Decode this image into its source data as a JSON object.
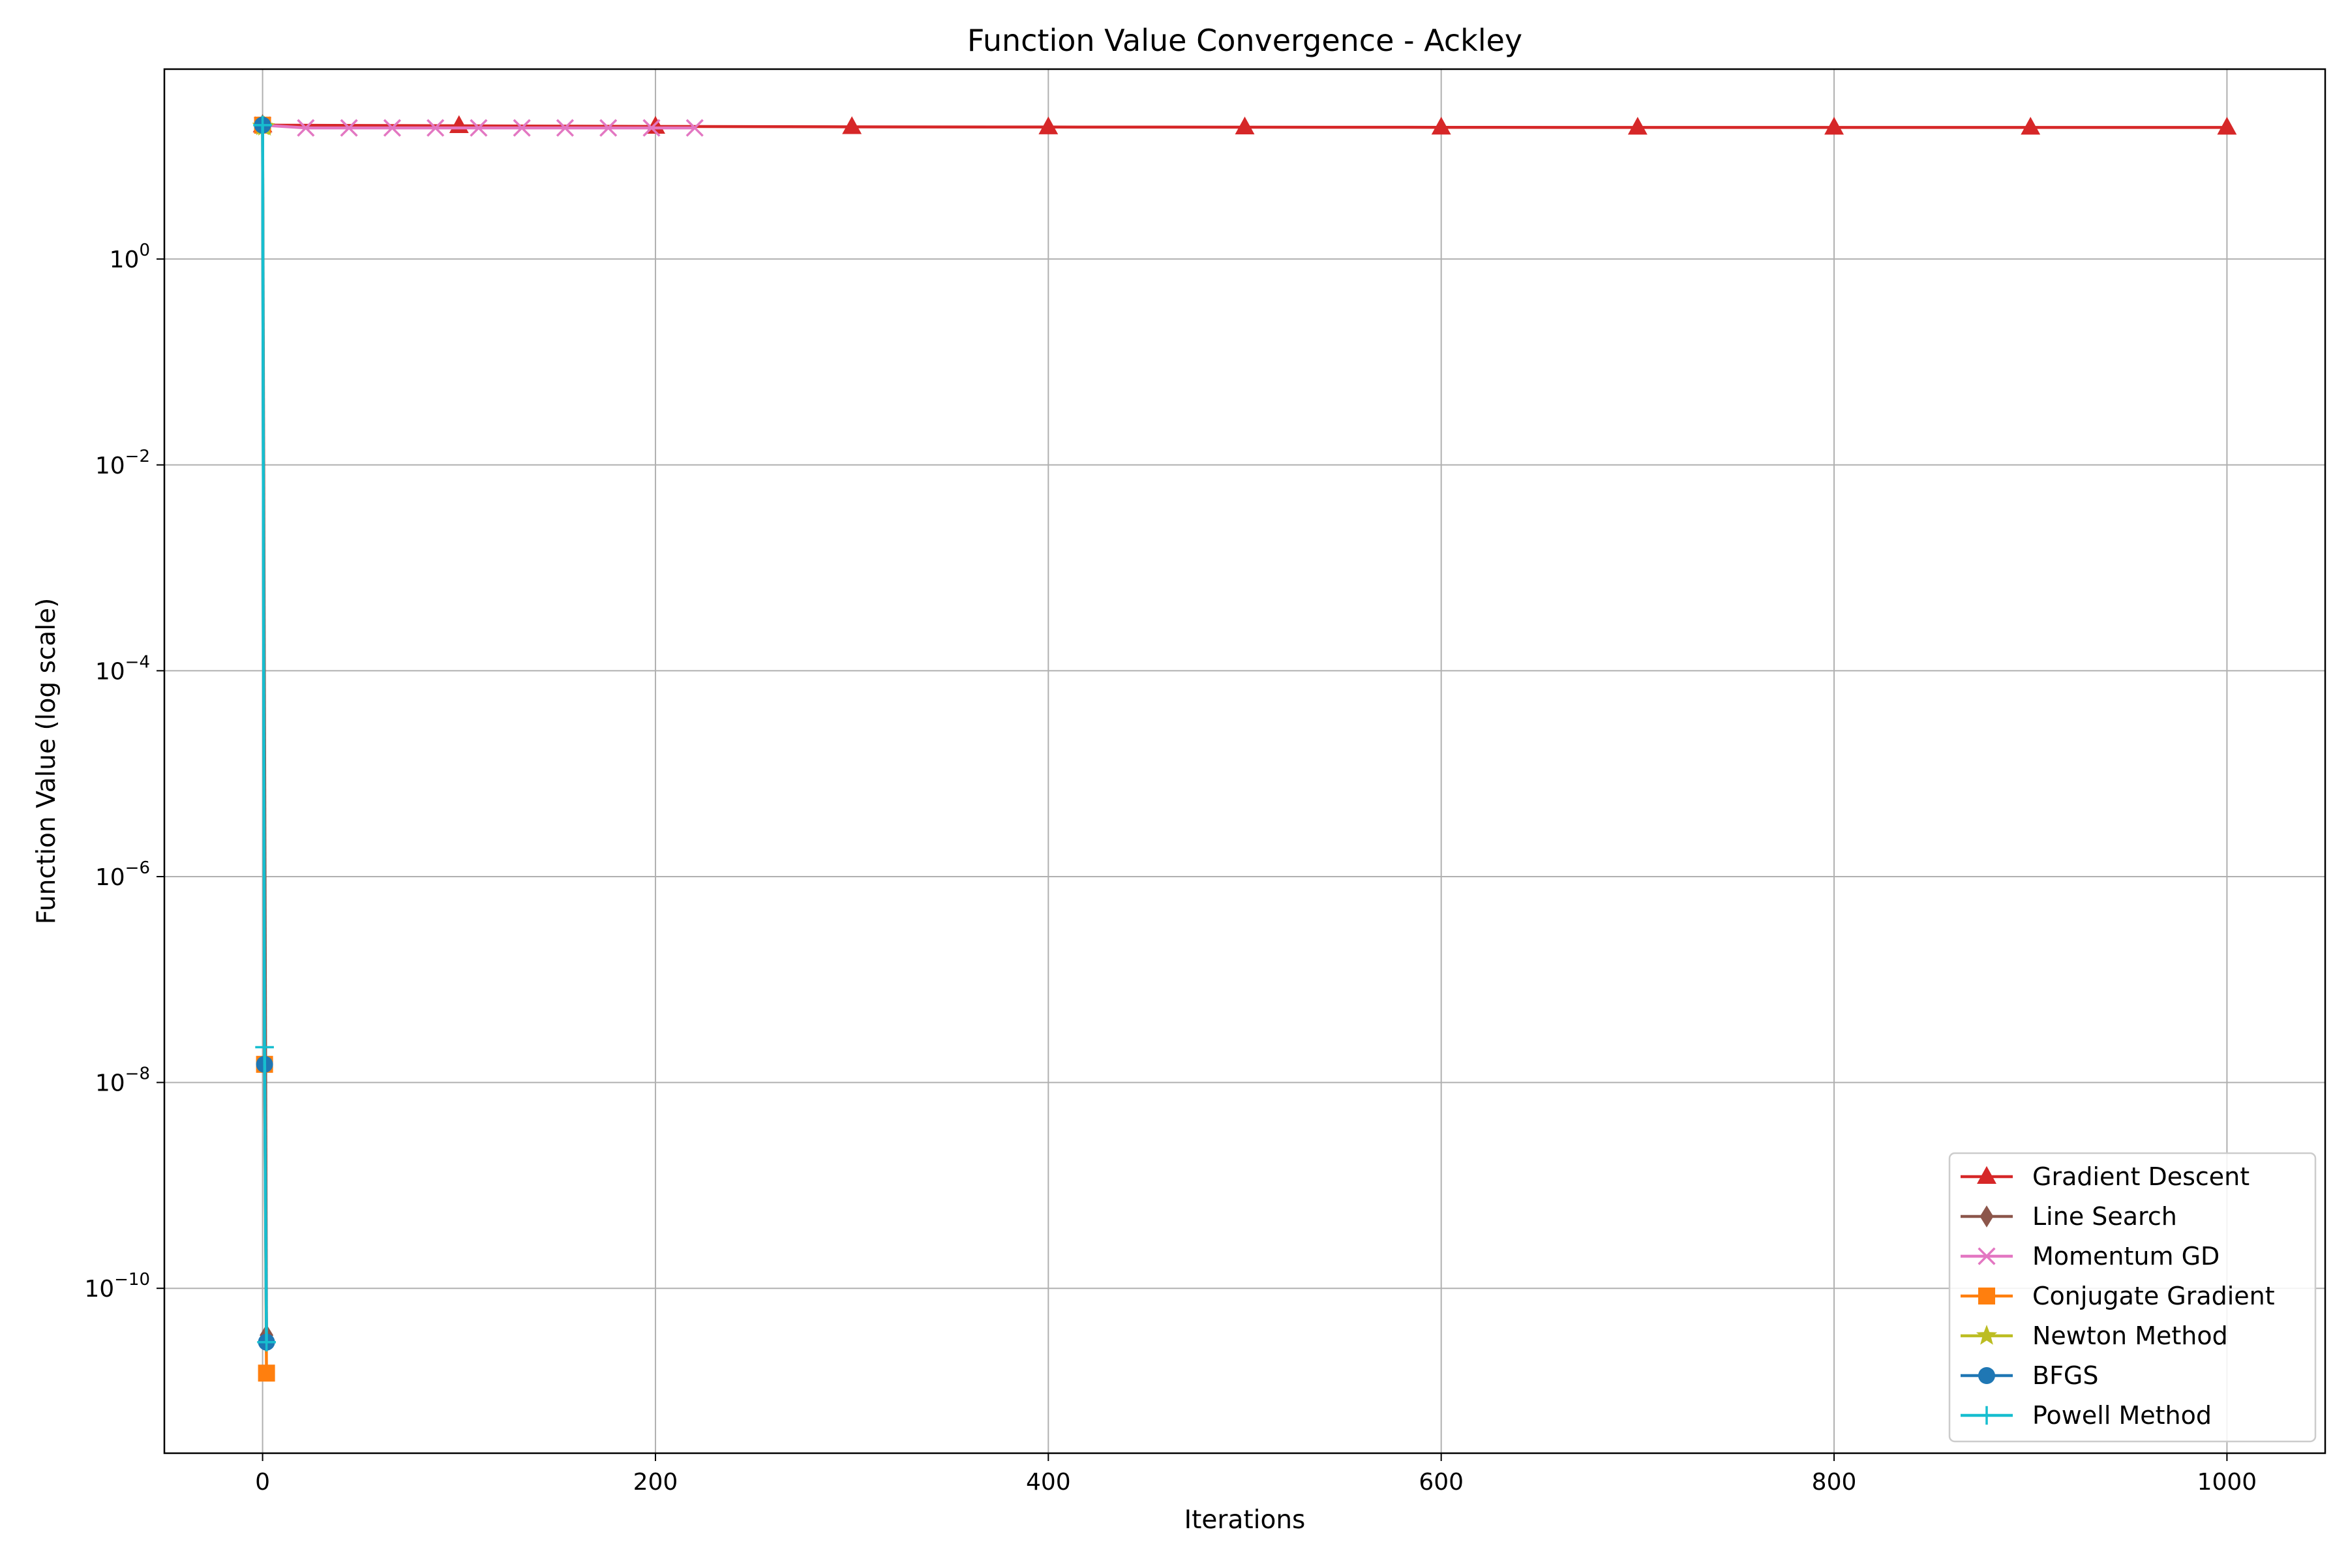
{
  "chart_data": {
    "type": "line",
    "title": "Function Value Convergence - Ackley",
    "xlabel": "Iterations",
    "ylabel": "Function Value (log scale)",
    "y_scale": "log",
    "xlim": [
      -50,
      1050
    ],
    "ylim": [
      2.5e-12,
      70
    ],
    "grid": true,
    "legend_position": "lower-right",
    "x_ticks": [
      {
        "value": 0,
        "label": "0"
      },
      {
        "value": 200,
        "label": "200"
      },
      {
        "value": 400,
        "label": "400"
      },
      {
        "value": 600,
        "label": "600"
      },
      {
        "value": 800,
        "label": "800"
      },
      {
        "value": 1000,
        "label": "1000"
      }
    ],
    "y_ticks": [
      {
        "value": 1,
        "base": "10",
        "exp": "0"
      },
      {
        "value": 0.01,
        "base": "10",
        "exp": "−2"
      },
      {
        "value": 0.0001,
        "base": "10",
        "exp": "−4"
      },
      {
        "value": 1e-06,
        "base": "10",
        "exp": "−6"
      },
      {
        "value": 1e-08,
        "base": "10",
        "exp": "−8"
      },
      {
        "value": 1e-10,
        "base": "10",
        "exp": "−10"
      }
    ],
    "series": [
      {
        "name": "Gradient Descent",
        "color": "#d62728",
        "marker": "triangle",
        "x": [
          0,
          100,
          200,
          300,
          400,
          500,
          600,
          700,
          800,
          900,
          1000
        ],
        "y": [
          20.0,
          19.7,
          19.4,
          19.25,
          19.15,
          19.1,
          19.05,
          19.0,
          19.0,
          19.0,
          19.0
        ]
      },
      {
        "name": "Line Search",
        "color": "#8c564b",
        "marker": "diamond",
        "x": [
          0,
          2
        ],
        "y": [
          20.0,
          3.5e-11
        ]
      },
      {
        "name": "Momentum GD",
        "color": "#e377c2",
        "marker": "x",
        "x": [
          0,
          22,
          44,
          66,
          88,
          110,
          132,
          154,
          176,
          198,
          220
        ],
        "y": [
          20.0,
          18.8,
          18.8,
          18.8,
          18.8,
          18.8,
          18.8,
          18.8,
          18.8,
          18.8,
          18.8
        ]
      },
      {
        "name": "Conjugate Gradient",
        "color": "#ff7f0e",
        "marker": "square",
        "x": [
          0,
          1,
          2
        ],
        "y": [
          20.0,
          1.5e-08,
          1.5e-11
        ]
      },
      {
        "name": "Newton Method",
        "color": "#bcbd22",
        "marker": "star",
        "x": [
          0,
          1
        ],
        "y": [
          19.5,
          19.3
        ]
      },
      {
        "name": "BFGS",
        "color": "#1f77b4",
        "marker": "circle",
        "x": [
          0,
          1,
          2
        ],
        "y": [
          20.0,
          1.5e-08,
          3e-11
        ]
      },
      {
        "name": "Powell Method",
        "color": "#17becf",
        "marker": "plus",
        "x": [
          0,
          1,
          2
        ],
        "y": [
          20.0,
          2.2e-08,
          3e-11
        ]
      }
    ]
  }
}
